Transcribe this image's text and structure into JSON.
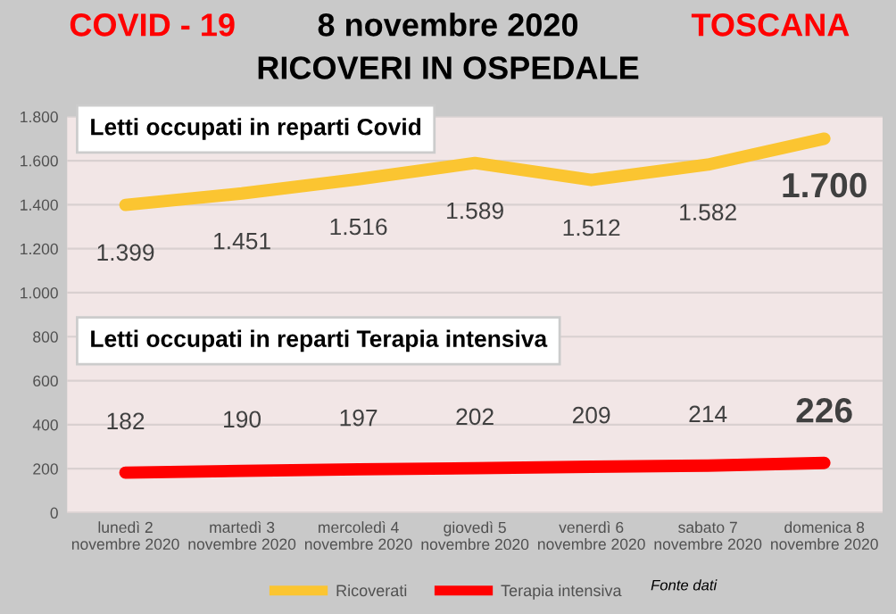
{
  "chart_data": {
    "type": "line",
    "title": "8 novembre 2020",
    "subtitle": "RICOVERI IN OSPEDALE",
    "annotations": [
      "COVID - 19",
      "TOSCANA",
      "Letti occupati in reparti Covid",
      "Letti occupati in reparti Terapia intensiva",
      "Fonte dati"
    ],
    "categories": [
      "lunedì 2\nnovembre 2020",
      "martedì 3\nnovembre 2020",
      "mercoledì 4\nnovembre 2020",
      "giovedì 5\nnovembre 2020",
      "venerdì 6\nnovembre 2020",
      "sabato 7\nnovembre 2020",
      "domenica 8\nnovembre 2020"
    ],
    "series": [
      {
        "name": "Ricoverati",
        "color": "#fbc531",
        "values": [
          1399,
          1451,
          1516,
          1589,
          1512,
          1582,
          1700
        ],
        "value_labels": [
          "1.399",
          "1.451",
          "1.516",
          "1.589",
          "1.512",
          "1.582",
          "1.700"
        ]
      },
      {
        "name": "Terapia intensiva",
        "color": "#ff0000",
        "values": [
          182,
          190,
          197,
          202,
          209,
          214,
          226
        ],
        "value_labels": [
          "182",
          "190",
          "197",
          "202",
          "209",
          "214",
          "226"
        ]
      }
    ],
    "ylim": [
      0,
      1800
    ],
    "yticks": [
      0,
      200,
      400,
      600,
      800,
      {
        "value": 1000,
        "label": "1.000"
      },
      {
        "value": 1200,
        "label": "1.200"
      },
      {
        "value": 1400,
        "label": "1.400"
      },
      {
        "value": 1600,
        "label": "1.600"
      },
      {
        "value": 1800,
        "label": "1.800"
      }
    ],
    "grid": "y",
    "legend": "bottom",
    "marker": "none",
    "line_style": "solid"
  }
}
